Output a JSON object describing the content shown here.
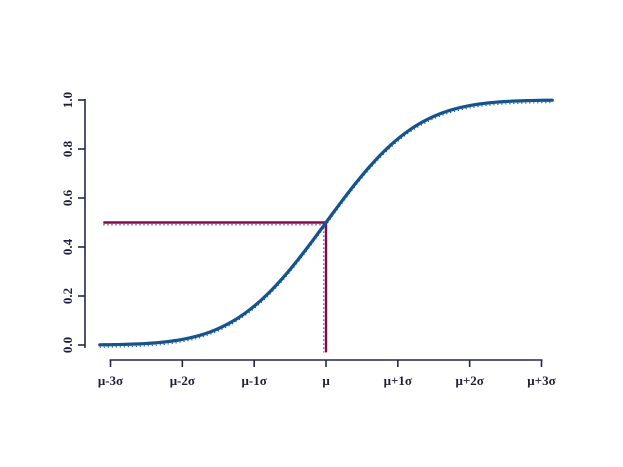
{
  "figure": {
    "background_color": "#ffffff",
    "kind": "statistical plot (R-style), cumulative distribution function of a normal distribution"
  },
  "chart_data": {
    "type": "line",
    "title": "",
    "xlabel": "",
    "ylabel": "",
    "x_tick_labels": [
      "μ-3σ",
      "μ-2σ",
      "μ-1σ",
      "μ",
      "μ+1σ",
      "μ+2σ",
      "μ+3σ"
    ],
    "x_tick_values": [
      -3,
      -2,
      -1,
      0,
      1,
      2,
      3
    ],
    "y_tick_labels": [
      "0.0",
      "0.2",
      "0.4",
      "0.6",
      "0.8",
      "1.0"
    ],
    "y_tick_values": [
      0,
      0.2,
      0.4,
      0.6,
      0.8,
      1
    ],
    "xlim": [
      -3.15,
      3.15
    ],
    "ylim": [
      0,
      1
    ],
    "grid": false,
    "legend": false,
    "axis_color": "#26264e",
    "tick_label_color": "#1e1e3c",
    "series": [
      {
        "name": "standard-normal-cdf",
        "formula": "Phi((x - mu) / sigma)",
        "x_range_sigma": [
          -3.15,
          3.15
        ],
        "color": "#14538e",
        "line_width": 3.2,
        "line_style": "thick dotted (dots merged to near-solid)",
        "key_points": {
          "x_sigma": [
            -3,
            -2,
            -1,
            0,
            1,
            2,
            3
          ],
          "y": [
            0.00135,
            0.02275,
            0.15866,
            0.5,
            0.84134,
            0.97725,
            0.99865
          ]
        }
      }
    ],
    "annotations": {
      "reference_color": "#7d0b4e",
      "line_style": "thick dotted (dots merged to near-solid)",
      "median_point": {
        "x_sigma": 0,
        "y": 0.5
      },
      "horizontal_segment": {
        "from_x_sigma": -3.1,
        "to_x_sigma": 0,
        "y": 0.5
      },
      "vertical_segment": {
        "x_sigma": 0,
        "from_y": -0.03,
        "to_y": 0.5
      }
    }
  }
}
